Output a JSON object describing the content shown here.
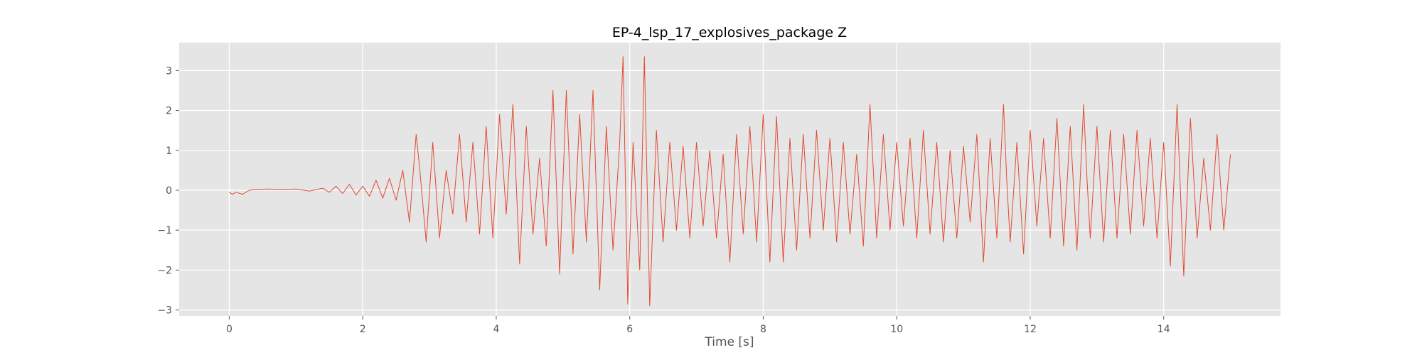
{
  "chart_data": {
    "type": "line",
    "title": "EP-4_lsp_17_explosives_package Z",
    "xlabel": "Time [s]",
    "ylabel": "",
    "xlim": [
      -0.75,
      15.75
    ],
    "ylim": [
      -3.15,
      3.7
    ],
    "xticks": [
      0,
      2,
      4,
      6,
      8,
      10,
      12,
      14
    ],
    "yticks": [
      -3,
      -2,
      -1,
      0,
      1,
      2,
      3
    ],
    "xtick_labels": [
      "0",
      "2",
      "4",
      "6",
      "8",
      "10",
      "12",
      "14"
    ],
    "ytick_labels": [
      "−3",
      "−2",
      "−1",
      "0",
      "1",
      "2",
      "3"
    ],
    "grid": true,
    "legend": "none",
    "colors": {
      "plot_background": "#e5e5e5",
      "grid": "#ffffff",
      "line": "#e24a33",
      "tick": "#555555",
      "title": "#000000"
    },
    "series": [
      {
        "x": [
          0.0,
          0.05,
          0.1,
          0.2,
          0.3,
          0.4,
          0.6,
          0.8,
          1.0,
          1.2,
          1.4,
          1.5,
          1.6,
          1.7,
          1.8,
          1.9,
          2.0,
          2.1,
          2.2,
          2.3,
          2.4,
          2.5,
          2.6,
          2.7,
          2.8,
          2.85,
          2.95,
          3.05,
          3.15,
          3.25,
          3.35,
          3.45,
          3.55,
          3.65,
          3.75,
          3.85,
          3.95,
          4.05,
          4.15,
          4.25,
          4.35,
          4.45,
          4.55,
          4.65,
          4.75,
          4.85,
          4.95,
          5.05,
          5.15,
          5.25,
          5.35,
          5.45,
          5.55,
          5.65,
          5.75,
          5.85,
          5.9,
          5.97,
          6.05,
          6.15,
          6.22,
          6.3,
          6.4,
          6.5,
          6.6,
          6.7,
          6.8,
          6.9,
          7.0,
          7.1,
          7.2,
          7.3,
          7.4,
          7.5,
          7.6,
          7.7,
          7.8,
          7.9,
          8.0,
          8.1,
          8.2,
          8.3,
          8.4,
          8.5,
          8.6,
          8.7,
          8.8,
          8.9,
          9.0,
          9.1,
          9.2,
          9.3,
          9.4,
          9.5,
          9.6,
          9.65,
          9.7,
          9.8,
          9.9,
          10.0,
          10.1,
          10.2,
          10.3,
          10.4,
          10.5,
          10.6,
          10.7,
          10.8,
          10.9,
          11.0,
          11.1,
          11.2,
          11.3,
          11.4,
          11.5,
          11.6,
          11.65,
          11.7,
          11.8,
          11.9,
          12.0,
          12.1,
          12.2,
          12.3,
          12.4,
          12.5,
          12.6,
          12.7,
          12.8,
          12.85,
          12.9,
          13.0,
          13.1,
          13.2,
          13.3,
          13.4,
          13.5,
          13.6,
          13.7,
          13.8,
          13.9,
          14.0,
          14.1,
          14.2,
          14.3,
          14.4,
          14.5,
          14.6,
          14.7,
          14.8,
          14.9,
          15.0
        ],
        "values": [
          -0.05,
          -0.1,
          -0.05,
          -0.1,
          0.0,
          0.02,
          0.03,
          0.02,
          0.03,
          -0.02,
          0.05,
          -0.05,
          0.1,
          -0.08,
          0.15,
          -0.12,
          0.1,
          -0.15,
          0.25,
          -0.2,
          0.3,
          -0.25,
          0.5,
          -0.8,
          1.4,
          0.6,
          -1.3,
          1.2,
          -1.2,
          0.5,
          -0.6,
          1.4,
          -0.8,
          1.2,
          -1.1,
          1.6,
          -1.2,
          1.9,
          -0.6,
          2.15,
          -1.85,
          1.6,
          -1.1,
          0.8,
          -1.4,
          2.5,
          -2.1,
          2.5,
          -1.6,
          1.9,
          -1.3,
          2.5,
          -2.5,
          1.6,
          -1.5,
          1.2,
          3.35,
          -2.85,
          1.2,
          -2.0,
          3.35,
          -2.9,
          1.5,
          -1.3,
          1.2,
          -1.0,
          1.1,
          -1.2,
          1.2,
          -0.9,
          1.0,
          -1.2,
          0.9,
          -1.8,
          1.4,
          -1.1,
          1.6,
          -1.3,
          1.9,
          -1.8,
          1.85,
          -1.8,
          1.3,
          -1.5,
          1.4,
          -1.2,
          1.5,
          -1.0,
          1.3,
          -1.3,
          1.2,
          -1.1,
          0.9,
          -1.4,
          2.15,
          0.5,
          -1.2,
          1.4,
          -1.0,
          1.2,
          -0.9,
          1.3,
          -1.2,
          1.5,
          -1.1,
          1.2,
          -1.3,
          1.0,
          -1.2,
          1.1,
          -0.8,
          1.4,
          -1.8,
          1.3,
          -1.2,
          2.15,
          0.2,
          -1.3,
          1.2,
          -1.6,
          1.5,
          -0.9,
          1.3,
          -1.2,
          1.8,
          -1.4,
          1.6,
          -1.5,
          2.15,
          0.3,
          -1.2,
          1.6,
          -1.3,
          1.5,
          -1.2,
          1.4,
          -1.1,
          1.5,
          -0.9,
          1.3,
          -1.2,
          1.2,
          -1.9,
          2.15,
          -2.15,
          1.8,
          -1.2,
          0.8,
          -1.0,
          1.4,
          -1.0,
          0.9
        ]
      }
    ]
  }
}
